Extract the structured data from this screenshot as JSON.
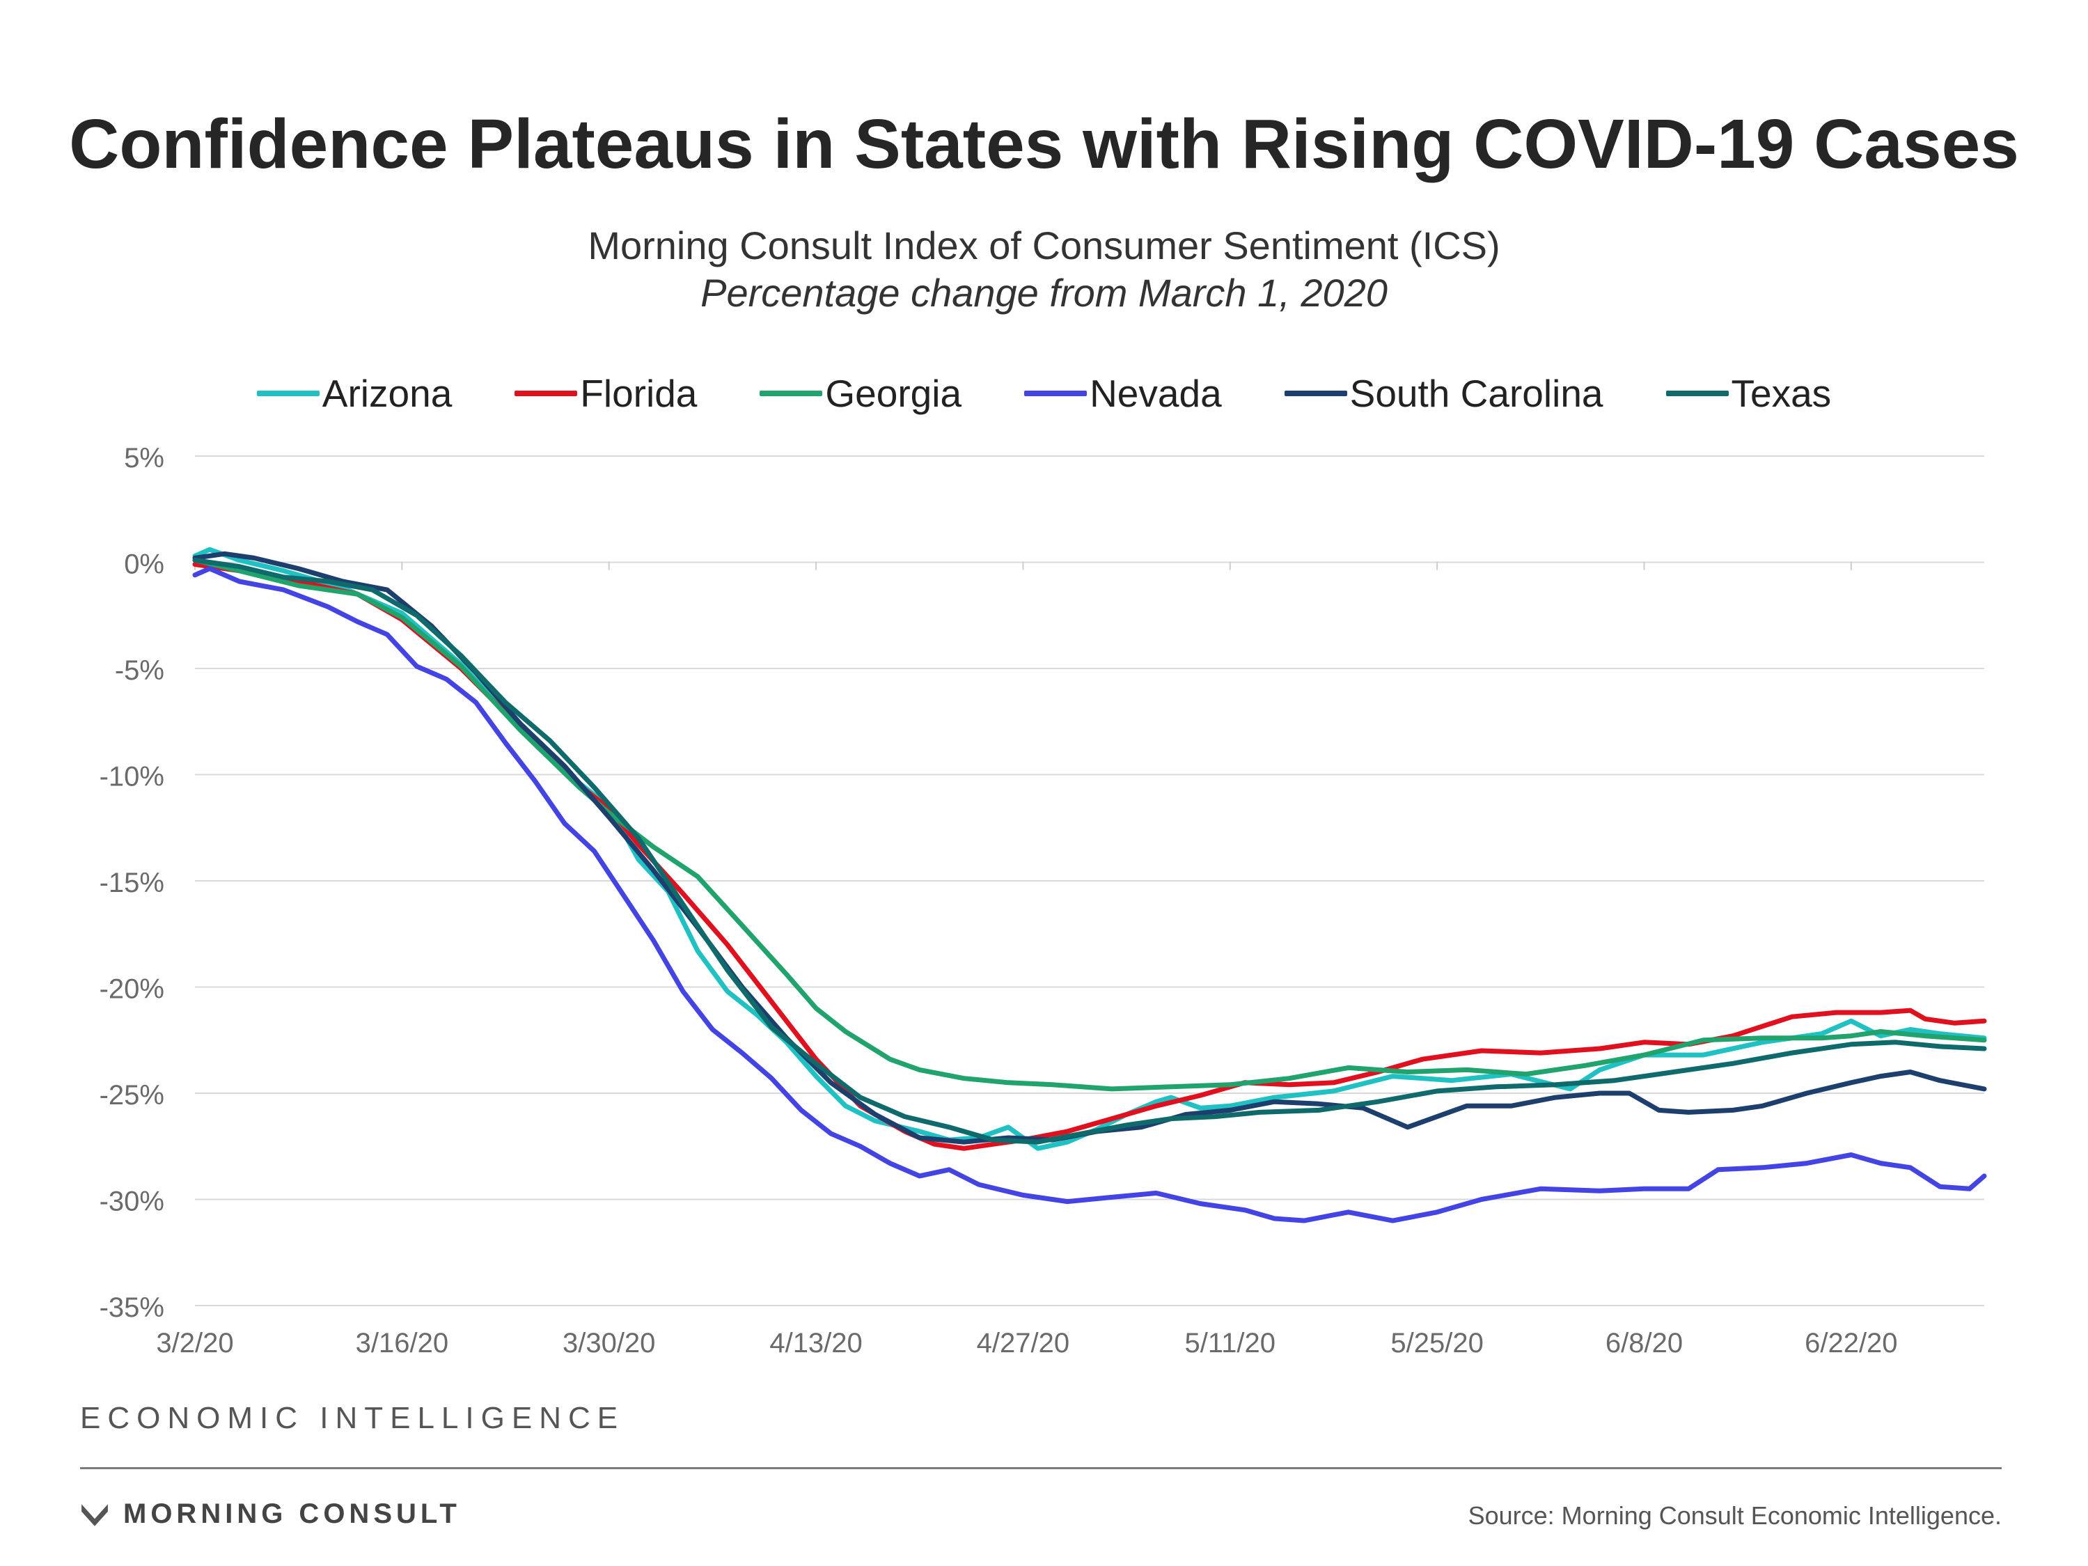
{
  "header": {
    "title": "Confidence Plateaus in States with Rising COVID-19 Cases",
    "subtitle": "Morning Consult Index of Consumer Sentiment (ICS)",
    "subtitle2": "Percentage change from March 1, 2020"
  },
  "footer": {
    "brand_tag": "ECONOMIC INTELLIGENCE",
    "logo_text": "MORNING CONSULT",
    "source": "Source: Morning Consult Economic Intelligence."
  },
  "chart_data": {
    "type": "line",
    "title": "Confidence Plateaus in States with Rising COVID-19 Cases",
    "subtitle": "Morning Consult Index of Consumer Sentiment (ICS)",
    "xlabel": "",
    "ylabel": "",
    "x_ticks": [
      "3/2/20",
      "3/16/20",
      "3/30/20",
      "4/13/20",
      "4/27/20",
      "5/11/20",
      "5/25/20",
      "6/8/20",
      "6/22/20"
    ],
    "y_ticks": [
      "5%",
      "0%",
      "-5%",
      "-10%",
      "-15%",
      "-20%",
      "-25%",
      "-30%",
      "-35%"
    ],
    "ylim": [
      -35,
      5
    ],
    "xlim": [
      "3/2/20",
      "7/1/20"
    ],
    "grid": true,
    "legend_position": "top",
    "series": [
      {
        "name": "Arizona",
        "color": "#1fc1c3",
        "points": [
          [
            "3/2/20",
            0.3
          ],
          [
            "3/3/20",
            0.6
          ],
          [
            "3/5/20",
            0.1
          ],
          [
            "3/8/20",
            -0.4
          ],
          [
            "3/12/20",
            -1.2
          ],
          [
            "3/16/20",
            -2.4
          ],
          [
            "3/20/20",
            -4.8
          ],
          [
            "3/24/20",
            -7.8
          ],
          [
            "3/28/20",
            -10.4
          ],
          [
            "3/30/20",
            -11.5
          ],
          [
            "4/1/20",
            -14
          ],
          [
            "4/3/20",
            -15.5
          ],
          [
            "4/5/20",
            -18.3
          ],
          [
            "4/7/20",
            -20.2
          ],
          [
            "4/9/20",
            -21.3
          ],
          [
            "4/11/20",
            -22.6
          ],
          [
            "4/13/20",
            -24.2
          ],
          [
            "4/15/20",
            -25.6
          ],
          [
            "4/17/20",
            -26.3
          ],
          [
            "4/20/20",
            -26.8
          ],
          [
            "4/22/20",
            -27.2
          ],
          [
            "4/24/20",
            -27.1
          ],
          [
            "4/26/20",
            -26.6
          ],
          [
            "4/28/20",
            -27.6
          ],
          [
            "4/30/20",
            -27.3
          ],
          [
            "5/2/20",
            -26.7
          ],
          [
            "5/4/20",
            -26
          ],
          [
            "5/6/20",
            -25.4
          ],
          [
            "5/7/20",
            -25.2
          ],
          [
            "5/9/20",
            -25.7
          ],
          [
            "5/11/20",
            -25.6
          ],
          [
            "5/14/20",
            -25.2
          ],
          [
            "5/18/20",
            -24.9
          ],
          [
            "5/22/20",
            -24.2
          ],
          [
            "5/26/20",
            -24.4
          ],
          [
            "5/30/20",
            -24.1
          ],
          [
            "6/3/20",
            -24.8
          ],
          [
            "6/5/20",
            -23.9
          ],
          [
            "6/8/20",
            -23.2
          ],
          [
            "6/12/20",
            -23.2
          ],
          [
            "6/16/20",
            -22.6
          ],
          [
            "6/20/20",
            -22.2
          ],
          [
            "6/22/20",
            -21.6
          ],
          [
            "6/24/20",
            -22.3
          ],
          [
            "6/26/20",
            -22
          ],
          [
            "6/28/20",
            -22.2
          ],
          [
            "7/1/20",
            -22.4
          ]
        ]
      },
      {
        "name": "Florida",
        "color": "#e0101e",
        "points": [
          [
            "3/2/20",
            -0.1
          ],
          [
            "3/5/20",
            -0.4
          ],
          [
            "3/9/20",
            -0.9
          ],
          [
            "3/13/20",
            -1.5
          ],
          [
            "3/16/20",
            -2.7
          ],
          [
            "3/20/20",
            -5
          ],
          [
            "3/24/20",
            -7.8
          ],
          [
            "3/28/20",
            -10.5
          ],
          [
            "3/30/20",
            -11.6
          ],
          [
            "4/1/20",
            -13.3
          ],
          [
            "4/4/20",
            -15.6
          ],
          [
            "4/7/20",
            -18
          ],
          [
            "4/10/20",
            -20.7
          ],
          [
            "4/13/20",
            -23.4
          ],
          [
            "4/16/20",
            -25.6
          ],
          [
            "4/19/20",
            -26.8
          ],
          [
            "4/21/20",
            -27.4
          ],
          [
            "4/23/20",
            -27.6
          ],
          [
            "4/25/20",
            -27.4
          ],
          [
            "4/27/20",
            -27.2
          ],
          [
            "4/30/20",
            -26.8
          ],
          [
            "5/3/20",
            -26.2
          ],
          [
            "5/6/20",
            -25.6
          ],
          [
            "5/9/20",
            -25.1
          ],
          [
            "5/12/20",
            -24.5
          ],
          [
            "5/15/20",
            -24.6
          ],
          [
            "5/18/20",
            -24.5
          ],
          [
            "5/21/20",
            -24
          ],
          [
            "5/24/20",
            -23.4
          ],
          [
            "5/28/20",
            -23
          ],
          [
            "6/1/20",
            -23.1
          ],
          [
            "6/5/20",
            -22.9
          ],
          [
            "6/8/20",
            -22.6
          ],
          [
            "6/11/20",
            -22.7
          ],
          [
            "6/14/20",
            -22.3
          ],
          [
            "6/18/20",
            -21.4
          ],
          [
            "6/21/20",
            -21.2
          ],
          [
            "6/24/20",
            -21.2
          ],
          [
            "6/26/20",
            -21.1
          ],
          [
            "6/27/20",
            -21.5
          ],
          [
            "6/29/20",
            -21.7
          ],
          [
            "7/1/20",
            -21.6
          ]
        ]
      },
      {
        "name": "Georgia",
        "color": "#20a36c",
        "points": [
          [
            "3/2/20",
            0.1
          ],
          [
            "3/5/20",
            -0.4
          ],
          [
            "3/9/20",
            -1.1
          ],
          [
            "3/13/20",
            -1.5
          ],
          [
            "3/16/20",
            -2.6
          ],
          [
            "3/20/20",
            -4.9
          ],
          [
            "3/24/20",
            -7.9
          ],
          [
            "3/28/20",
            -10.6
          ],
          [
            "3/30/20",
            -11.8
          ],
          [
            "4/2/20",
            -13.4
          ],
          [
            "4/5/20",
            -14.8
          ],
          [
            "4/8/20",
            -17.1
          ],
          [
            "4/11/20",
            -19.4
          ],
          [
            "4/13/20",
            -21
          ],
          [
            "4/15/20",
            -22.1
          ],
          [
            "4/18/20",
            -23.4
          ],
          [
            "4/20/20",
            -23.9
          ],
          [
            "4/23/20",
            -24.3
          ],
          [
            "4/26/20",
            -24.5
          ],
          [
            "4/29/20",
            -24.6
          ],
          [
            "5/3/20",
            -24.8
          ],
          [
            "5/7/20",
            -24.7
          ],
          [
            "5/11/20",
            -24.6
          ],
          [
            "5/15/20",
            -24.3
          ],
          [
            "5/19/20",
            -23.8
          ],
          [
            "5/23/20",
            -24
          ],
          [
            "5/27/20",
            -23.9
          ],
          [
            "5/31/20",
            -24.1
          ],
          [
            "6/4/20",
            -23.7
          ],
          [
            "6/8/20",
            -23.2
          ],
          [
            "6/12/20",
            -22.5
          ],
          [
            "6/16/20",
            -22.4
          ],
          [
            "6/20/20",
            -22.4
          ],
          [
            "6/22/20",
            -22.3
          ],
          [
            "6/24/20",
            -22.1
          ],
          [
            "6/27/20",
            -22.3
          ],
          [
            "7/1/20",
            -22.5
          ]
        ]
      },
      {
        "name": "Nevada",
        "color": "#4444e4",
        "points": [
          [
            "3/2/20",
            -0.6
          ],
          [
            "3/3/20",
            -0.3
          ],
          [
            "3/5/20",
            -0.9
          ],
          [
            "3/8/20",
            -1.3
          ],
          [
            "3/11/20",
            -2.1
          ],
          [
            "3/13/20",
            -2.8
          ],
          [
            "3/15/20",
            -3.4
          ],
          [
            "3/17/20",
            -4.9
          ],
          [
            "3/19/20",
            -5.5
          ],
          [
            "3/21/20",
            -6.6
          ],
          [
            "3/23/20",
            -8.5
          ],
          [
            "3/25/20",
            -10.3
          ],
          [
            "3/27/20",
            -12.3
          ],
          [
            "3/29/20",
            -13.6
          ],
          [
            "3/31/20",
            -15.7
          ],
          [
            "4/2/20",
            -17.8
          ],
          [
            "4/4/20",
            -20.2
          ],
          [
            "4/6/20",
            -22
          ],
          [
            "4/8/20",
            -23.1
          ],
          [
            "4/10/20",
            -24.3
          ],
          [
            "4/12/20",
            -25.8
          ],
          [
            "4/14/20",
            -26.9
          ],
          [
            "4/16/20",
            -27.5
          ],
          [
            "4/18/20",
            -28.3
          ],
          [
            "4/20/20",
            -28.9
          ],
          [
            "4/22/20",
            -28.6
          ],
          [
            "4/24/20",
            -29.3
          ],
          [
            "4/27/20",
            -29.8
          ],
          [
            "4/30/20",
            -30.1
          ],
          [
            "5/3/20",
            -29.9
          ],
          [
            "5/6/20",
            -29.7
          ],
          [
            "5/9/20",
            -30.2
          ],
          [
            "5/12/20",
            -30.5
          ],
          [
            "5/14/20",
            -30.9
          ],
          [
            "5/16/20",
            -31
          ],
          [
            "5/19/20",
            -30.6
          ],
          [
            "5/22/20",
            -31
          ],
          [
            "5/25/20",
            -30.6
          ],
          [
            "5/28/20",
            -30
          ],
          [
            "6/1/20",
            -29.5
          ],
          [
            "6/5/20",
            -29.6
          ],
          [
            "6/8/20",
            -29.5
          ],
          [
            "6/11/20",
            -29.5
          ],
          [
            "6/13/20",
            -28.6
          ],
          [
            "6/16/20",
            -28.5
          ],
          [
            "6/19/20",
            -28.3
          ],
          [
            "6/22/20",
            -27.9
          ],
          [
            "6/24/20",
            -28.3
          ],
          [
            "6/26/20",
            -28.5
          ],
          [
            "6/28/20",
            -29.4
          ],
          [
            "6/30/20",
            -29.5
          ],
          [
            "7/1/20",
            -28.9
          ]
        ]
      },
      {
        "name": "South Carolina",
        "color": "#1d3f6e",
        "points": [
          [
            "3/2/20",
            0.2
          ],
          [
            "3/4/20",
            0.4
          ],
          [
            "3/6/20",
            0.2
          ],
          [
            "3/9/20",
            -0.3
          ],
          [
            "3/12/20",
            -0.9
          ],
          [
            "3/15/20",
            -1.3
          ],
          [
            "3/18/20",
            -3
          ],
          [
            "3/21/20",
            -5.2
          ],
          [
            "3/24/20",
            -7.6
          ],
          [
            "3/27/20",
            -9.6
          ],
          [
            "3/30/20",
            -12
          ],
          [
            "4/2/20",
            -14.5
          ],
          [
            "4/5/20",
            -17.2
          ],
          [
            "4/8/20",
            -20
          ],
          [
            "4/11/20",
            -22.4
          ],
          [
            "4/14/20",
            -24.5
          ],
          [
            "4/17/20",
            -26
          ],
          [
            "4/20/20",
            -27.1
          ],
          [
            "4/23/20",
            -27.3
          ],
          [
            "4/26/20",
            -27.1
          ],
          [
            "4/29/20",
            -27.2
          ],
          [
            "5/2/20",
            -26.8
          ],
          [
            "5/5/20",
            -26.6
          ],
          [
            "5/8/20",
            -26
          ],
          [
            "5/11/20",
            -25.8
          ],
          [
            "5/14/20",
            -25.4
          ],
          [
            "5/17/20",
            -25.5
          ],
          [
            "5/20/20",
            -25.7
          ],
          [
            "5/23/20",
            -26.6
          ],
          [
            "5/25/20",
            -26.1
          ],
          [
            "5/27/20",
            -25.6
          ],
          [
            "5/30/20",
            -25.6
          ],
          [
            "6/2/20",
            -25.2
          ],
          [
            "6/5/20",
            -25
          ],
          [
            "6/7/20",
            -25
          ],
          [
            "6/9/20",
            -25.8
          ],
          [
            "6/11/20",
            -25.9
          ],
          [
            "6/14/20",
            -25.8
          ],
          [
            "6/16/20",
            -25.6
          ],
          [
            "6/19/20",
            -25
          ],
          [
            "6/22/20",
            -24.5
          ],
          [
            "6/24/20",
            -24.2
          ],
          [
            "6/26/20",
            -24
          ],
          [
            "6/28/20",
            -24.4
          ],
          [
            "7/1/20",
            -24.8
          ]
        ]
      },
      {
        "name": "Texas",
        "color": "#0f6b6b",
        "points": [
          [
            "3/2/20",
            0.1
          ],
          [
            "3/5/20",
            -0.2
          ],
          [
            "3/8/20",
            -0.7
          ],
          [
            "3/11/20",
            -0.9
          ],
          [
            "3/14/20",
            -1.3
          ],
          [
            "3/17/20",
            -2.5
          ],
          [
            "3/20/20",
            -4.4
          ],
          [
            "3/23/20",
            -6.6
          ],
          [
            "3/26/20",
            -8.4
          ],
          [
            "3/29/20",
            -10.6
          ],
          [
            "4/1/20",
            -13
          ],
          [
            "4/4/20",
            -16.1
          ],
          [
            "4/7/20",
            -19.2
          ],
          [
            "4/10/20",
            -21.9
          ],
          [
            "4/13/20",
            -23.6
          ],
          [
            "4/16/20",
            -25.2
          ],
          [
            "4/19/20",
            -26.1
          ],
          [
            "4/22/20",
            -26.6
          ],
          [
            "4/25/20",
            -27.2
          ],
          [
            "4/28/20",
            -27.3
          ],
          [
            "5/1/20",
            -26.9
          ],
          [
            "5/4/20",
            -26.5
          ],
          [
            "5/7/20",
            -26.2
          ],
          [
            "5/10/20",
            -26.1
          ],
          [
            "5/13/20",
            -25.9
          ],
          [
            "5/17/20",
            -25.8
          ],
          [
            "5/21/20",
            -25.4
          ],
          [
            "5/25/20",
            -24.9
          ],
          [
            "5/29/20",
            -24.7
          ],
          [
            "6/2/20",
            -24.6
          ],
          [
            "6/6/20",
            -24.4
          ],
          [
            "6/10/20",
            -24
          ],
          [
            "6/14/20",
            -23.6
          ],
          [
            "6/18/20",
            -23.1
          ],
          [
            "6/22/20",
            -22.7
          ],
          [
            "6/25/20",
            -22.6
          ],
          [
            "6/28/20",
            -22.8
          ],
          [
            "7/1/20",
            -22.9
          ]
        ]
      }
    ]
  }
}
